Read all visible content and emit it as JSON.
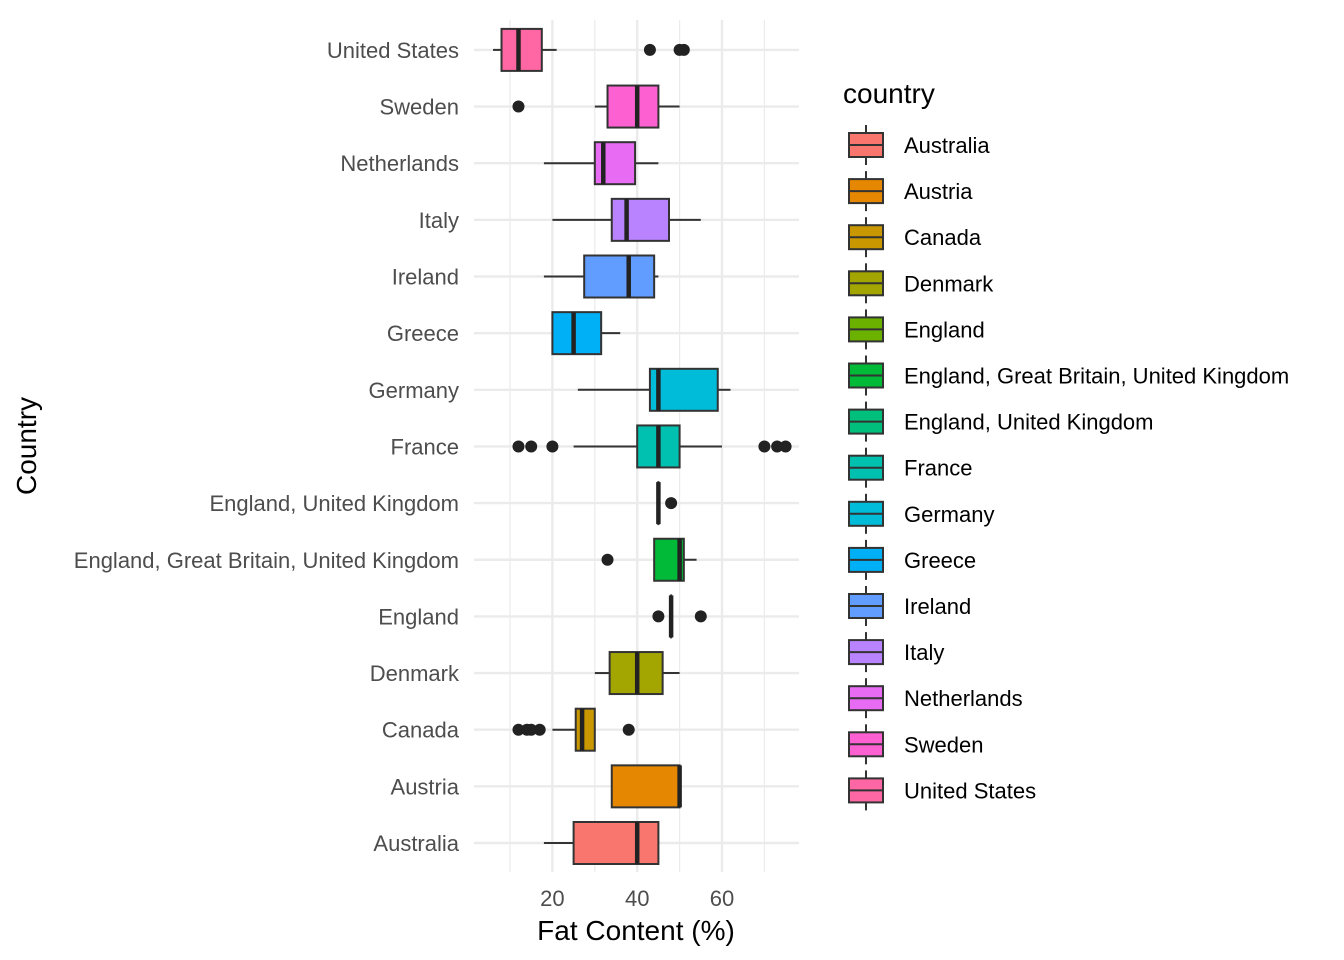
{
  "chart_data": {
    "type": "boxplot",
    "orientation": "horizontal",
    "xlabel": "Fat Content (%)",
    "ylabel": "Country",
    "xlim": [
      5,
      78
    ],
    "x_ticks": [
      20,
      40,
      60
    ],
    "grid": true,
    "legend": {
      "title": "country",
      "placement": "right"
    },
    "categories": [
      "Australia",
      "Austria",
      "Canada",
      "Denmark",
      "England",
      "England, Great Britain, United Kingdom",
      "England, United Kingdom",
      "France",
      "Germany",
      "Greece",
      "Ireland",
      "Italy",
      "Netherlands",
      "Sweden",
      "United States"
    ],
    "series": [
      {
        "name": "Australia",
        "color": "#F8766D",
        "whisker_low": 18,
        "q1": 25,
        "median": 40,
        "q3": 45,
        "whisker_high": 45,
        "outliers": []
      },
      {
        "name": "Austria",
        "color": "#E58700",
        "whisker_low": 34,
        "q1": 34,
        "median": 50,
        "q3": 50,
        "whisker_high": 50,
        "outliers": []
      },
      {
        "name": "Canada",
        "color": "#C99800",
        "whisker_low": 20,
        "q1": 25.5,
        "median": 27,
        "q3": 30,
        "whisker_high": 30,
        "outliers": [
          12,
          14,
          15,
          17,
          38
        ]
      },
      {
        "name": "Denmark",
        "color": "#A3A500",
        "whisker_low": 30,
        "q1": 33.5,
        "median": 40,
        "q3": 46,
        "whisker_high": 50,
        "outliers": []
      },
      {
        "name": "England",
        "color": "#6BB100",
        "whisker_low": 48,
        "q1": 48,
        "median": 48,
        "q3": 48,
        "whisker_high": 48,
        "outliers": [
          45,
          55
        ]
      },
      {
        "name": "England, Great Britain, United Kingdom",
        "color": "#00BA38",
        "whisker_low": 44,
        "q1": 44,
        "median": 50,
        "q3": 51,
        "whisker_high": 54,
        "outliers": [
          33
        ]
      },
      {
        "name": "England, United Kingdom",
        "color": "#00BF7D",
        "whisker_low": 45,
        "q1": 45,
        "median": 45,
        "q3": 45,
        "whisker_high": 45,
        "outliers": [
          48
        ]
      },
      {
        "name": "France",
        "color": "#00C0AF",
        "whisker_low": 25,
        "q1": 40,
        "median": 45,
        "q3": 50,
        "whisker_high": 60,
        "outliers": [
          12,
          15,
          20,
          70,
          73,
          75
        ]
      },
      {
        "name": "Germany",
        "color": "#00BCD8",
        "whisker_low": 26,
        "q1": 43,
        "median": 45,
        "q3": 59,
        "whisker_high": 62,
        "outliers": []
      },
      {
        "name": "Greece",
        "color": "#00B0F6",
        "whisker_low": 20,
        "q1": 20,
        "median": 25,
        "q3": 31.5,
        "whisker_high": 36,
        "outliers": []
      },
      {
        "name": "Ireland",
        "color": "#619CFF",
        "whisker_low": 18,
        "q1": 27.5,
        "median": 38,
        "q3": 44,
        "whisker_high": 45,
        "outliers": []
      },
      {
        "name": "Italy",
        "color": "#B983FF",
        "whisker_low": 20,
        "q1": 34,
        "median": 37.5,
        "q3": 47.5,
        "whisker_high": 55,
        "outliers": []
      },
      {
        "name": "Netherlands",
        "color": "#E76BF3",
        "whisker_low": 18,
        "q1": 30,
        "median": 32,
        "q3": 39.5,
        "whisker_high": 45,
        "outliers": []
      },
      {
        "name": "Sweden",
        "color": "#FD61D1",
        "whisker_low": 30,
        "q1": 33,
        "median": 40,
        "q3": 45,
        "whisker_high": 50,
        "outliers": [
          12
        ]
      },
      {
        "name": "United States",
        "color": "#FF67A4",
        "whisker_low": 6,
        "q1": 8,
        "median": 12,
        "q3": 17.5,
        "whisker_high": 21,
        "outliers": [
          43,
          50,
          51
        ]
      }
    ]
  }
}
